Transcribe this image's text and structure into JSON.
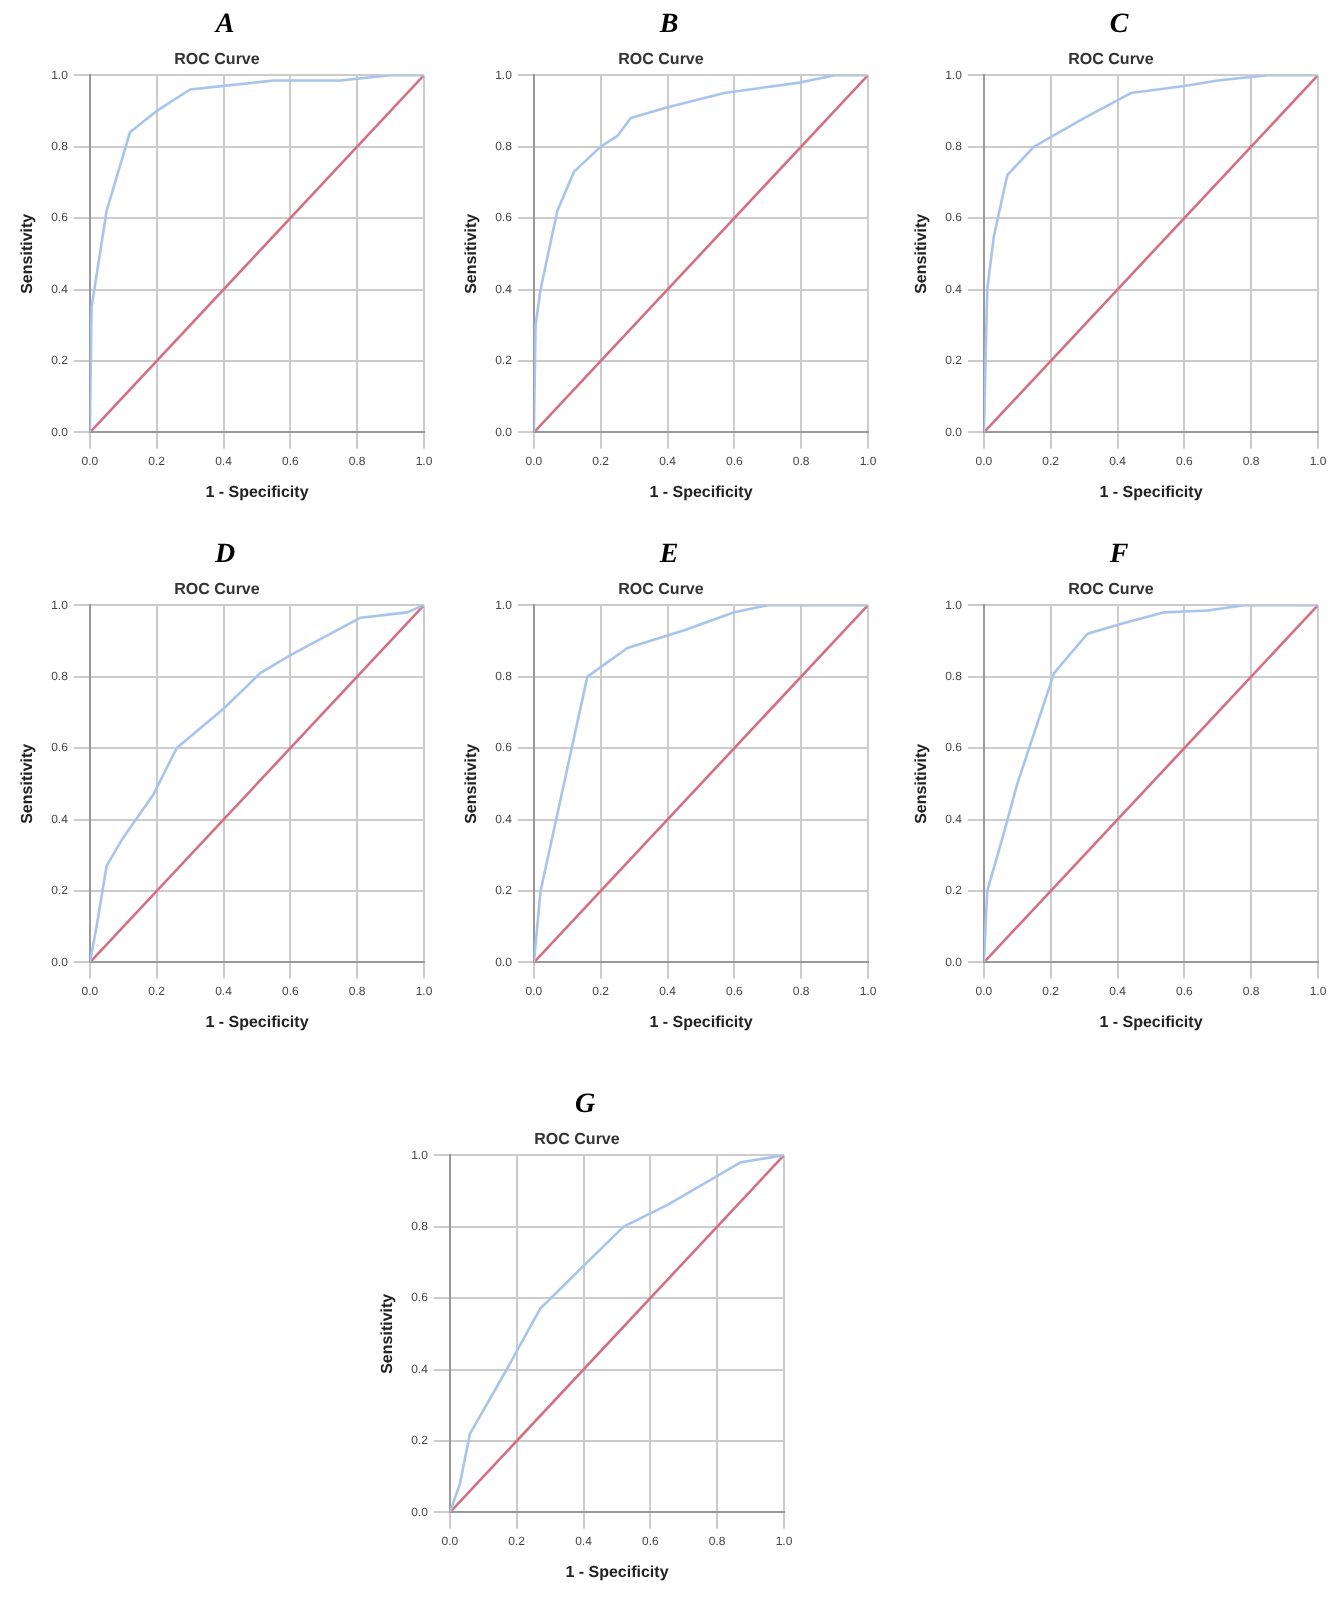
{
  "chart_data": [
    {
      "type": "line",
      "title": "A",
      "subtitle": "ROC Curve",
      "xlabel": "1 - Specificity",
      "ylabel": "Sensitivity",
      "xlim": [
        0,
        1
      ],
      "ylim": [
        0,
        1
      ],
      "xticks": [
        {
          "value": 0,
          "label": "0.0"
        },
        {
          "value": 0.2,
          "label": "0.2"
        },
        {
          "value": 0.4,
          "label": "0.4"
        },
        {
          "value": 0.6,
          "label": "0.6"
        },
        {
          "value": 0.8,
          "label": "0.8"
        },
        {
          "value": 1,
          "label": "1.0"
        }
      ],
      "yticks": [
        {
          "value": 0,
          "label": "0.0"
        },
        {
          "value": 0.2,
          "label": "0.2"
        },
        {
          "value": 0.4,
          "label": "0.4"
        },
        {
          "value": 0.6,
          "label": "0.6"
        },
        {
          "value": 0.8,
          "label": "0.8"
        },
        {
          "value": 1,
          "label": "1.0"
        }
      ],
      "grid": true,
      "marker": "none",
      "line_style": "solid",
      "series": [
        {
          "color": "#a7c4ee",
          "x": [
            0,
            0.005,
            0.03,
            0.05,
            0.12,
            0.2,
            0.3,
            0.4,
            0.55,
            0.75,
            0.9,
            1
          ],
          "values": [
            0,
            0.35,
            0.5,
            0.62,
            0.84,
            0.9,
            0.96,
            0.97,
            0.985,
            0.985,
            1,
            1
          ]
        },
        {
          "color": "#d46f80",
          "x": [
            0,
            1
          ],
          "values": [
            0,
            1
          ]
        }
      ]
    },
    {
      "type": "line",
      "title": "B",
      "subtitle": "ROC Curve",
      "xlabel": "1 - Specificity",
      "ylabel": "Sensitivity",
      "xlim": [
        0,
        1
      ],
      "ylim": [
        0,
        1
      ],
      "xticks": [
        {
          "value": 0,
          "label": "0.0"
        },
        {
          "value": 0.2,
          "label": "0.2"
        },
        {
          "value": 0.4,
          "label": "0.4"
        },
        {
          "value": 0.6,
          "label": "0.6"
        },
        {
          "value": 0.8,
          "label": "0.8"
        },
        {
          "value": 1,
          "label": "1.0"
        }
      ],
      "yticks": [
        {
          "value": 0,
          "label": "0.0"
        },
        {
          "value": 0.2,
          "label": "0.2"
        },
        {
          "value": 0.4,
          "label": "0.4"
        },
        {
          "value": 0.6,
          "label": "0.6"
        },
        {
          "value": 0.8,
          "label": "0.8"
        },
        {
          "value": 1,
          "label": "1.0"
        }
      ],
      "grid": true,
      "marker": "none",
      "line_style": "solid",
      "series": [
        {
          "color": "#a7c4ee",
          "x": [
            0,
            0.005,
            0.02,
            0.07,
            0.12,
            0.2,
            0.25,
            0.29,
            0.4,
            0.57,
            0.8,
            0.9,
            1
          ],
          "values": [
            0,
            0.3,
            0.4,
            0.62,
            0.73,
            0.8,
            0.83,
            0.88,
            0.91,
            0.95,
            0.98,
            1,
            1
          ]
        },
        {
          "color": "#d46f80",
          "x": [
            0,
            1
          ],
          "values": [
            0,
            1
          ]
        }
      ]
    },
    {
      "type": "line",
      "title": "C",
      "subtitle": "ROC Curve",
      "xlabel": "1 - Specificity",
      "ylabel": "Sensitivity",
      "xlim": [
        0,
        1
      ],
      "ylim": [
        0,
        1
      ],
      "xticks": [
        {
          "value": 0,
          "label": "0.0"
        },
        {
          "value": 0.2,
          "label": "0.2"
        },
        {
          "value": 0.4,
          "label": "0.4"
        },
        {
          "value": 0.6,
          "label": "0.6"
        },
        {
          "value": 0.8,
          "label": "0.8"
        },
        {
          "value": 1,
          "label": "1.0"
        }
      ],
      "yticks": [
        {
          "value": 0,
          "label": "0.0"
        },
        {
          "value": 0.2,
          "label": "0.2"
        },
        {
          "value": 0.4,
          "label": "0.4"
        },
        {
          "value": 0.6,
          "label": "0.6"
        },
        {
          "value": 0.8,
          "label": "0.8"
        },
        {
          "value": 1,
          "label": "1.0"
        }
      ],
      "grid": true,
      "marker": "none",
      "line_style": "solid",
      "series": [
        {
          "color": "#a7c4ee",
          "x": [
            0,
            0.01,
            0.03,
            0.07,
            0.15,
            0.3,
            0.44,
            0.6,
            0.7,
            0.85,
            1
          ],
          "values": [
            0,
            0.4,
            0.55,
            0.72,
            0.8,
            0.88,
            0.95,
            0.97,
            0.985,
            1,
            1
          ]
        },
        {
          "color": "#d46f80",
          "x": [
            0,
            1
          ],
          "values": [
            0,
            1
          ]
        }
      ]
    },
    {
      "type": "line",
      "title": "D",
      "subtitle": "ROC Curve",
      "xlabel": "1 - Specificity",
      "ylabel": "Sensitivity",
      "xlim": [
        0,
        1
      ],
      "ylim": [
        0,
        1
      ],
      "xticks": [
        {
          "value": 0,
          "label": "0.0"
        },
        {
          "value": 0.2,
          "label": "0.2"
        },
        {
          "value": 0.4,
          "label": "0.4"
        },
        {
          "value": 0.6,
          "label": "0.6"
        },
        {
          "value": 0.8,
          "label": "0.8"
        },
        {
          "value": 1,
          "label": "1.0"
        }
      ],
      "yticks": [
        {
          "value": 0,
          "label": "0.0"
        },
        {
          "value": 0.2,
          "label": "0.2"
        },
        {
          "value": 0.4,
          "label": "0.4"
        },
        {
          "value": 0.6,
          "label": "0.6"
        },
        {
          "value": 0.8,
          "label": "0.8"
        },
        {
          "value": 1,
          "label": "1.0"
        }
      ],
      "grid": true,
      "marker": "none",
      "line_style": "solid",
      "series": [
        {
          "color": "#a7c4ee",
          "x": [
            0,
            0.02,
            0.05,
            0.1,
            0.19,
            0.26,
            0.4,
            0.51,
            0.6,
            0.75,
            0.81,
            0.95,
            1
          ],
          "values": [
            0,
            0.1,
            0.27,
            0.35,
            0.47,
            0.6,
            0.71,
            0.81,
            0.86,
            0.935,
            0.965,
            0.98,
            1
          ]
        },
        {
          "color": "#d46f80",
          "x": [
            0,
            1
          ],
          "values": [
            0,
            1
          ]
        }
      ]
    },
    {
      "type": "line",
      "title": "E",
      "subtitle": "ROC Curve",
      "xlabel": "1 - Specificity",
      "ylabel": "Sensitivity",
      "xlim": [
        0,
        1
      ],
      "ylim": [
        0,
        1
      ],
      "xticks": [
        {
          "value": 0,
          "label": "0.0"
        },
        {
          "value": 0.2,
          "label": "0.2"
        },
        {
          "value": 0.4,
          "label": "0.4"
        },
        {
          "value": 0.6,
          "label": "0.6"
        },
        {
          "value": 0.8,
          "label": "0.8"
        },
        {
          "value": 1,
          "label": "1.0"
        }
      ],
      "yticks": [
        {
          "value": 0,
          "label": "0.0"
        },
        {
          "value": 0.2,
          "label": "0.2"
        },
        {
          "value": 0.4,
          "label": "0.4"
        },
        {
          "value": 0.6,
          "label": "0.6"
        },
        {
          "value": 0.8,
          "label": "0.8"
        },
        {
          "value": 1,
          "label": "1.0"
        }
      ],
      "grid": true,
      "marker": "none",
      "line_style": "solid",
      "series": [
        {
          "color": "#a7c4ee",
          "x": [
            0,
            0.02,
            0.16,
            0.28,
            0.45,
            0.6,
            0.7,
            1
          ],
          "values": [
            0,
            0.2,
            0.8,
            0.88,
            0.93,
            0.98,
            1,
            1
          ]
        },
        {
          "color": "#d46f80",
          "x": [
            0,
            1
          ],
          "values": [
            0,
            1
          ]
        }
      ]
    },
    {
      "type": "line",
      "title": "F",
      "subtitle": "ROC Curve",
      "xlabel": "1 - Specificity",
      "ylabel": "Sensitivity",
      "xlim": [
        0,
        1
      ],
      "ylim": [
        0,
        1
      ],
      "xticks": [
        {
          "value": 0,
          "label": "0.0"
        },
        {
          "value": 0.2,
          "label": "0.2"
        },
        {
          "value": 0.4,
          "label": "0.4"
        },
        {
          "value": 0.6,
          "label": "0.6"
        },
        {
          "value": 0.8,
          "label": "0.8"
        },
        {
          "value": 1,
          "label": "1.0"
        }
      ],
      "yticks": [
        {
          "value": 0,
          "label": "0.0"
        },
        {
          "value": 0.2,
          "label": "0.2"
        },
        {
          "value": 0.4,
          "label": "0.4"
        },
        {
          "value": 0.6,
          "label": "0.6"
        },
        {
          "value": 0.8,
          "label": "0.8"
        },
        {
          "value": 1,
          "label": "1.0"
        }
      ],
      "grid": true,
      "marker": "none",
      "line_style": "solid",
      "series": [
        {
          "color": "#a7c4ee",
          "x": [
            0,
            0.01,
            0.05,
            0.1,
            0.21,
            0.31,
            0.42,
            0.54,
            0.67,
            0.78,
            1
          ],
          "values": [
            0,
            0.2,
            0.33,
            0.5,
            0.81,
            0.92,
            0.95,
            0.98,
            0.985,
            1,
            1
          ]
        },
        {
          "color": "#d46f80",
          "x": [
            0,
            1
          ],
          "values": [
            0,
            1
          ]
        }
      ]
    },
    {
      "type": "line",
      "title": "G",
      "subtitle": "ROC Curve",
      "xlabel": "1 - Specificity",
      "ylabel": "Sensitivity",
      "xlim": [
        0,
        1
      ],
      "ylim": [
        0,
        1
      ],
      "xticks": [
        {
          "value": 0,
          "label": "0.0"
        },
        {
          "value": 0.2,
          "label": "0.2"
        },
        {
          "value": 0.4,
          "label": "0.4"
        },
        {
          "value": 0.6,
          "label": "0.6"
        },
        {
          "value": 0.8,
          "label": "0.8"
        },
        {
          "value": 1,
          "label": "1.0"
        }
      ],
      "yticks": [
        {
          "value": 0,
          "label": "0.0"
        },
        {
          "value": 0.2,
          "label": "0.2"
        },
        {
          "value": 0.4,
          "label": "0.4"
        },
        {
          "value": 0.6,
          "label": "0.6"
        },
        {
          "value": 0.8,
          "label": "0.8"
        },
        {
          "value": 1,
          "label": "1.0"
        }
      ],
      "grid": true,
      "marker": "none",
      "line_style": "solid",
      "series": [
        {
          "color": "#a7c4ee",
          "x": [
            0,
            0.03,
            0.06,
            0.17,
            0.27,
            0.4,
            0.52,
            0.65,
            0.87,
            1
          ],
          "values": [
            0,
            0.08,
            0.22,
            0.4,
            0.57,
            0.69,
            0.8,
            0.86,
            0.98,
            1
          ]
        },
        {
          "color": "#d46f80",
          "x": [
            0,
            1
          ],
          "values": [
            0,
            1
          ]
        }
      ]
    }
  ]
}
